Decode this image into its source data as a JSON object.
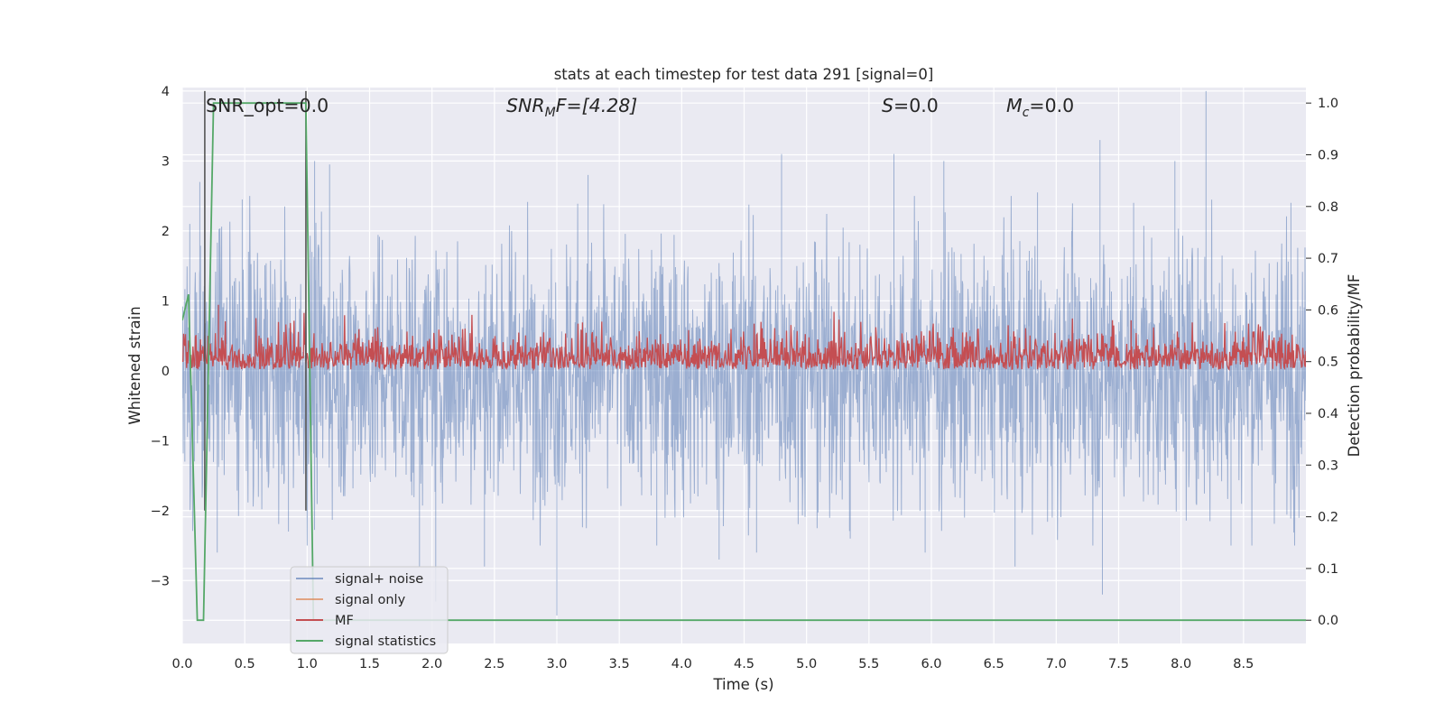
{
  "chart_data": {
    "type": "line",
    "title": "stats at each timestep for test data 291 [signal=0]",
    "xlabel": "Time (s)",
    "ylabel": "Whitened strain",
    "ylabel_right": "Detection probability/MF",
    "xlim": [
      0.0,
      9.0
    ],
    "ylim": [
      -3.9,
      4.05
    ],
    "ylim_right": [
      -0.045,
      1.03
    ],
    "x_ticks": [
      "0.0",
      "0.5",
      "1.0",
      "1.5",
      "2.0",
      "2.5",
      "3.0",
      "3.5",
      "4.0",
      "4.5",
      "5.0",
      "5.5",
      "6.0",
      "6.5",
      "7.0",
      "7.5",
      "8.0",
      "8.5"
    ],
    "y_ticks": [
      "−3",
      "−2",
      "−1",
      "0",
      "1",
      "2",
      "3",
      "4"
    ],
    "y_ticks_right": [
      "0.0",
      "0.1",
      "0.2",
      "0.3",
      "0.4",
      "0.5",
      "0.6",
      "0.7",
      "0.8",
      "0.9",
      "1.0"
    ],
    "grid": true,
    "legend_position": "lower-left",
    "annotations": {
      "snr_opt": "SNR_opt=0.0",
      "snr_mf": "F=[4.28]",
      "snr_mf_main": "SNR",
      "snr_mf_sub": "M",
      "s": "=0.0",
      "s_sym": "S",
      "mc": "=0.0",
      "mc_main": "M",
      "mc_sub": "c"
    },
    "vertical_markers_x": [
      0.18,
      0.99
    ],
    "series": [
      {
        "name": "signal+ noise",
        "axis": "left",
        "color": "#4c72b0",
        "description": "Dense whitened noise between about -2.5 and 2.5 with spikes",
        "spikes": [
          [
            0.02,
            -1.3
          ],
          [
            0.06,
            2.1
          ],
          [
            0.14,
            2.7
          ],
          [
            0.28,
            -2.6
          ],
          [
            0.48,
            2.45
          ],
          [
            0.85,
            -2.3
          ],
          [
            1.06,
            3.0
          ],
          [
            1.18,
            2.95
          ],
          [
            1.9,
            -2.8
          ],
          [
            2.03,
            -3.3
          ],
          [
            2.42,
            -2.8
          ],
          [
            3.0,
            -3.5
          ],
          [
            3.25,
            2.8
          ],
          [
            3.8,
            -2.5
          ],
          [
            4.3,
            -2.7
          ],
          [
            4.6,
            -2.6
          ],
          [
            4.8,
            3.1
          ],
          [
            5.35,
            -2.4
          ],
          [
            5.7,
            3.1
          ],
          [
            5.95,
            -2.6
          ],
          [
            6.1,
            3.0
          ],
          [
            6.67,
            -2.8
          ],
          [
            6.85,
            2.55
          ],
          [
            7.35,
            3.3
          ],
          [
            7.37,
            -3.2
          ],
          [
            7.62,
            2.4
          ],
          [
            7.95,
            3.0
          ],
          [
            8.2,
            4.0
          ],
          [
            8.4,
            -2.5
          ],
          [
            8.88,
            2.4
          ]
        ]
      },
      {
        "name": "signal only",
        "axis": "left",
        "color": "#dd8452",
        "values": []
      },
      {
        "name": "MF",
        "axis": "right",
        "color": "#c44e52",
        "description": "Matched-filter output fluctuating roughly between 0.48 and 0.62",
        "base": 0.5,
        "range": [
          0.47,
          0.63
        ],
        "peaks": [
          [
            0.29,
            0.61
          ],
          [
            0.99,
            0.6
          ],
          [
            7.6,
            0.58
          ]
        ]
      },
      {
        "name": "signal statistics",
        "axis": "right",
        "color": "#55a868",
        "x": [
          0.0,
          0.05,
          0.12,
          0.17,
          0.25,
          0.99,
          1.05,
          1.08,
          9.0
        ],
        "values": [
          0.58,
          0.63,
          0.0,
          0.0,
          1.0,
          1.0,
          0.0,
          0.0,
          0.0
        ]
      }
    ]
  }
}
